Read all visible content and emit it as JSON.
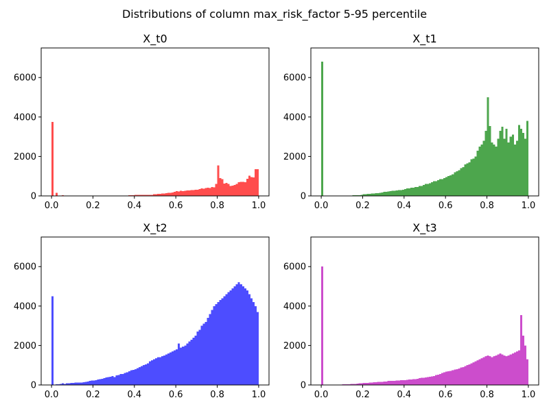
{
  "chart_data": {
    "type": "histogram",
    "title": "Distributions of column max_risk_factor 5-95 percentile",
    "layout": "2x2 grid",
    "bin_width": 0.01,
    "bins_start": 0.0,
    "xlim": [
      -0.05,
      1.05
    ],
    "ylim": [
      0,
      7500
    ],
    "xticks": [
      0.0,
      0.2,
      0.4,
      0.6,
      0.8,
      1.0
    ],
    "xtick_labels": [
      "0.0",
      "0.2",
      "0.4",
      "0.6",
      "0.8",
      "1.0"
    ],
    "yticks": [
      0,
      2000,
      4000,
      6000
    ],
    "ytick_labels": [
      "0",
      "2000",
      "4000",
      "6000"
    ],
    "grid": false,
    "panels": [
      {
        "title": "X_t0",
        "color": "#ff4d4d",
        "counts": [
          3750,
          0,
          150,
          0,
          0,
          30,
          0,
          0,
          0,
          0,
          0,
          0,
          0,
          0,
          20,
          0,
          20,
          0,
          20,
          0,
          20,
          0,
          20,
          0,
          20,
          0,
          20,
          20,
          20,
          20,
          20,
          20,
          20,
          20,
          20,
          20,
          20,
          40,
          40,
          40,
          50,
          50,
          50,
          50,
          60,
          60,
          60,
          60,
          60,
          80,
          80,
          100,
          100,
          120,
          120,
          140,
          160,
          160,
          180,
          200,
          240,
          220,
          260,
          240,
          260,
          280,
          280,
          300,
          300,
          320,
          320,
          340,
          380,
          360,
          400,
          420,
          400,
          460,
          440,
          600,
          1550,
          900,
          850,
          620,
          660,
          600,
          500,
          520,
          560,
          600,
          700,
          720,
          720,
          700,
          860,
          1020,
          960,
          940,
          1350,
          1350
        ]
      },
      {
        "title": "X_t1",
        "color": "#4da64d",
        "counts": [
          6800,
          0,
          0,
          0,
          0,
          0,
          0,
          0,
          0,
          0,
          0,
          0,
          0,
          0,
          20,
          30,
          40,
          40,
          40,
          60,
          80,
          80,
          100,
          100,
          120,
          120,
          140,
          140,
          160,
          180,
          200,
          200,
          220,
          240,
          260,
          260,
          280,
          300,
          300,
          320,
          340,
          380,
          380,
          420,
          420,
          460,
          460,
          500,
          500,
          550,
          600,
          600,
          650,
          700,
          750,
          750,
          800,
          850,
          850,
          900,
          950,
          1000,
          1050,
          1100,
          1200,
          1250,
          1300,
          1400,
          1450,
          1600,
          1650,
          1700,
          1850,
          1900,
          2000,
          2300,
          2500,
          2600,
          2800,
          3300,
          5000,
          3550,
          2700,
          2600,
          2500,
          2900,
          3300,
          3500,
          2900,
          3400,
          2700,
          3000,
          3100,
          2600,
          2800,
          3600,
          3400,
          3200,
          2900,
          3800
        ]
      },
      {
        "title": "X_t2",
        "color": "#4d4dff",
        "counts": [
          4500,
          0,
          40,
          40,
          60,
          80,
          60,
          80,
          80,
          100,
          100,
          120,
          130,
          120,
          120,
          140,
          160,
          180,
          200,
          220,
          220,
          240,
          280,
          300,
          320,
          340,
          380,
          400,
          420,
          450,
          400,
          480,
          500,
          550,
          560,
          600,
          650,
          700,
          750,
          760,
          800,
          850,
          900,
          950,
          1000,
          1050,
          1100,
          1200,
          1250,
          1300,
          1350,
          1400,
          1400,
          1450,
          1500,
          1550,
          1600,
          1650,
          1700,
          1750,
          1800,
          2100,
          1900,
          1950,
          2000,
          2100,
          2200,
          2300,
          2400,
          2500,
          2700,
          2800,
          3000,
          3100,
          3200,
          3400,
          3600,
          3800,
          4000,
          4100,
          4200,
          4300,
          4400,
          4500,
          4600,
          4700,
          4800,
          4900,
          5000,
          5100,
          5200,
          5100,
          5000,
          4900,
          4800,
          4600,
          4400,
          4200,
          4000,
          3700
        ]
      },
      {
        "title": "X_t3",
        "color": "#cc4dcc",
        "counts": [
          6000,
          0,
          0,
          0,
          0,
          0,
          0,
          0,
          0,
          0,
          30,
          40,
          40,
          40,
          50,
          60,
          60,
          70,
          80,
          80,
          100,
          100,
          100,
          120,
          120,
          140,
          140,
          160,
          160,
          160,
          180,
          180,
          200,
          200,
          200,
          200,
          220,
          220,
          240,
          240,
          240,
          260,
          280,
          280,
          300,
          300,
          320,
          340,
          360,
          360,
          380,
          400,
          420,
          440,
          460,
          500,
          520,
          560,
          600,
          640,
          680,
          700,
          720,
          740,
          780,
          800,
          840,
          880,
          900,
          950,
          1000,
          1050,
          1100,
          1150,
          1200,
          1250,
          1300,
          1350,
          1400,
          1450,
          1500,
          1450,
          1400,
          1450,
          1500,
          1550,
          1600,
          1550,
          1500,
          1450,
          1500,
          1550,
          1600,
          1650,
          1700,
          1750,
          3550,
          2500,
          2000,
          1300
        ]
      }
    ]
  }
}
